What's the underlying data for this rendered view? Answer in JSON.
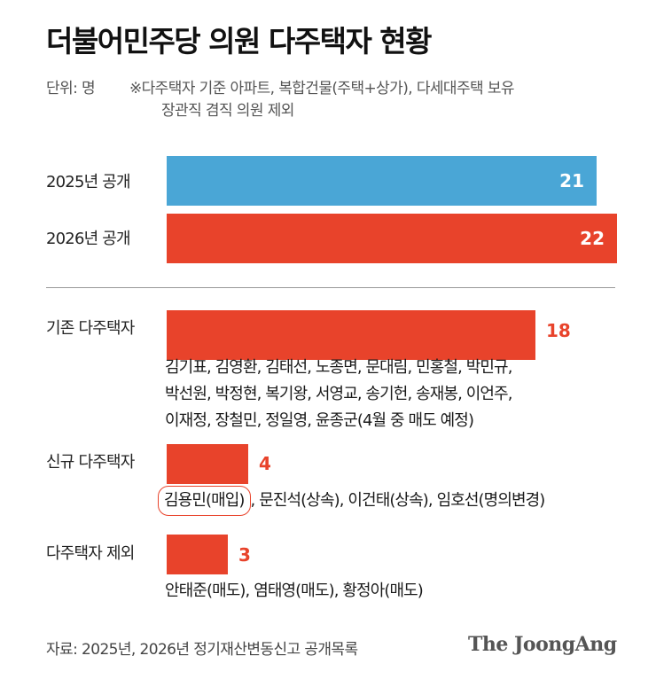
{
  "header": {
    "title": "더불어민주당 의원 다주택자 현황",
    "unit": "단위: 명",
    "note_line1": "※다주택자 기준 아파트, 복합건물(주택+상가), 다세대주택 보유",
    "note_line2": "장관직 겸직 의원 제외"
  },
  "colors": {
    "blue": "#4aa6d6",
    "red": "#e8432b"
  },
  "chart_data": {
    "type": "bar",
    "orientation": "horizontal",
    "categories": [
      "2025년 공개",
      "2026년 공개",
      "기존 다주택자",
      "신규 다주택자",
      "다주택자 제외"
    ],
    "values": [
      21,
      22,
      18,
      4,
      3
    ],
    "xlim": [
      0,
      22
    ]
  },
  "groups": {
    "existing_names": [
      "김기표, 김영환, 김태선, 노종면, 문대림, 민홍철, 박민규,",
      "박선원, 박정현, 복기왕, 서영교, 송기헌, 송재봉, 이언주,",
      "이재정, 장철민, 정일영, 윤종군(4월 중 매도 예정)"
    ],
    "new_highlight": "김용민(매입)",
    "new_rest": ", 문진석(상속), 이건태(상속), 임호선(명의변경)",
    "excluded_names": "안태준(매도), 염태영(매도), 황정아(매도)"
  },
  "footer": {
    "source": "자료: 2025년, 2026년 정기재산변동신고 공개목록",
    "logo": "The JoongAng"
  }
}
